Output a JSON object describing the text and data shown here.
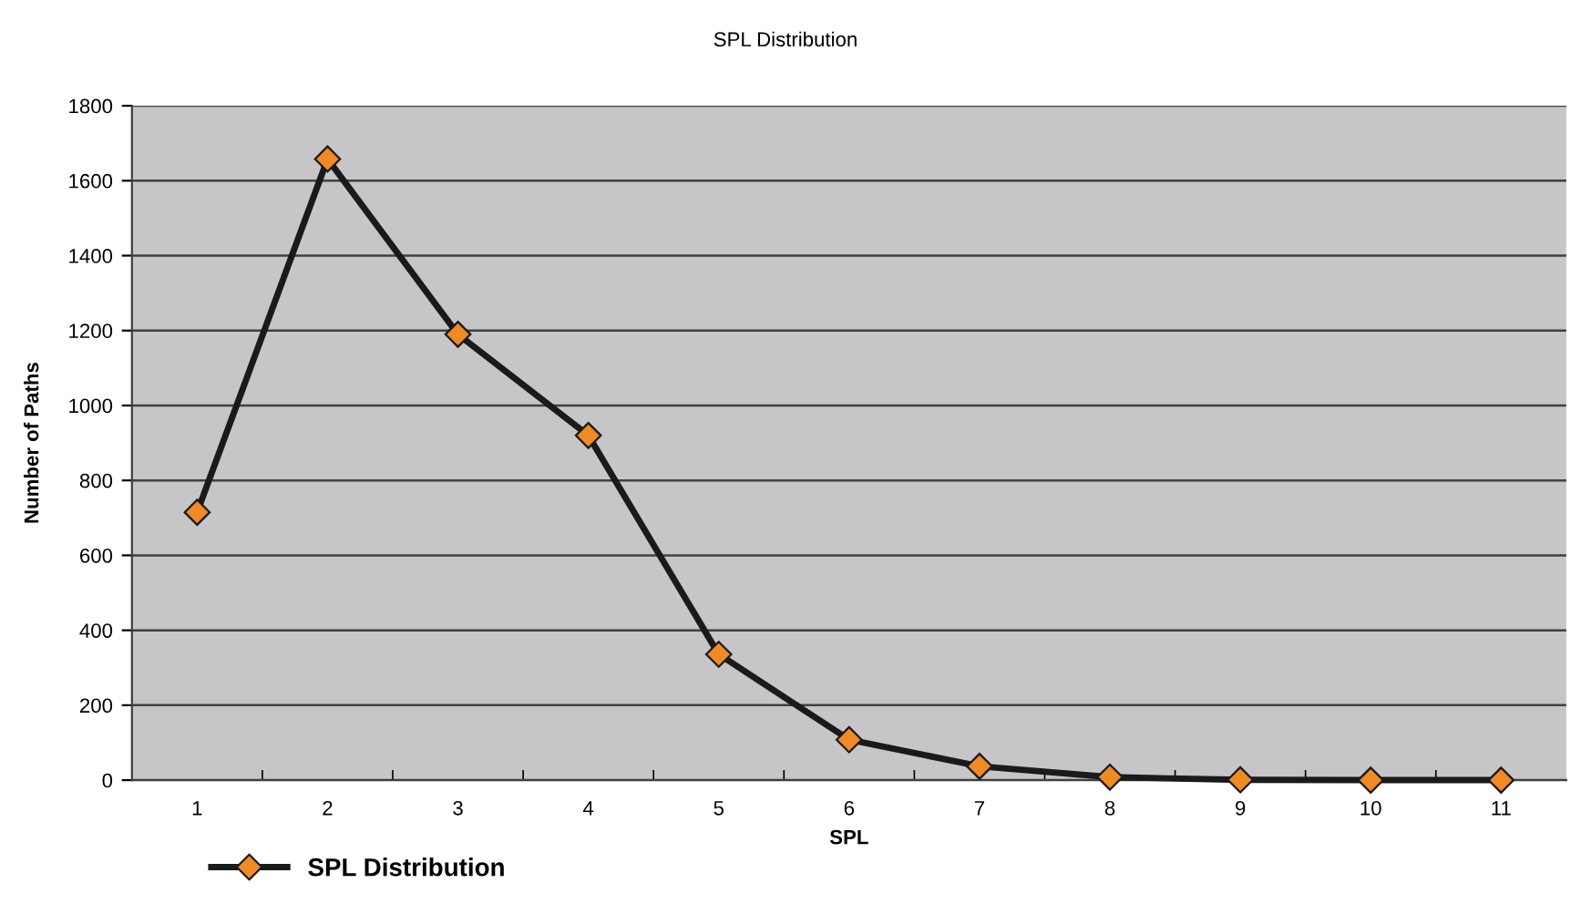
{
  "chart_data": {
    "type": "line",
    "title": "SPL Distribution",
    "xlabel": "SPL",
    "ylabel": "Number of Paths",
    "categories": [
      "1",
      "2",
      "3",
      "4",
      "5",
      "6",
      "7",
      "8",
      "9",
      "10",
      "11"
    ],
    "series": [
      {
        "name": "SPL Distribution",
        "color": "#f08a24",
        "values": [
          715,
          1658,
          1190,
          920,
          336,
          108,
          37,
          8,
          1,
          0,
          0
        ]
      }
    ],
    "ylim": [
      0,
      1800
    ],
    "yticks": [
      0,
      200,
      400,
      600,
      800,
      1000,
      1200,
      1400,
      1600,
      1800
    ],
    "grid": "y",
    "legend": "bottom left",
    "marker": "diamond",
    "line_style": "solid"
  }
}
